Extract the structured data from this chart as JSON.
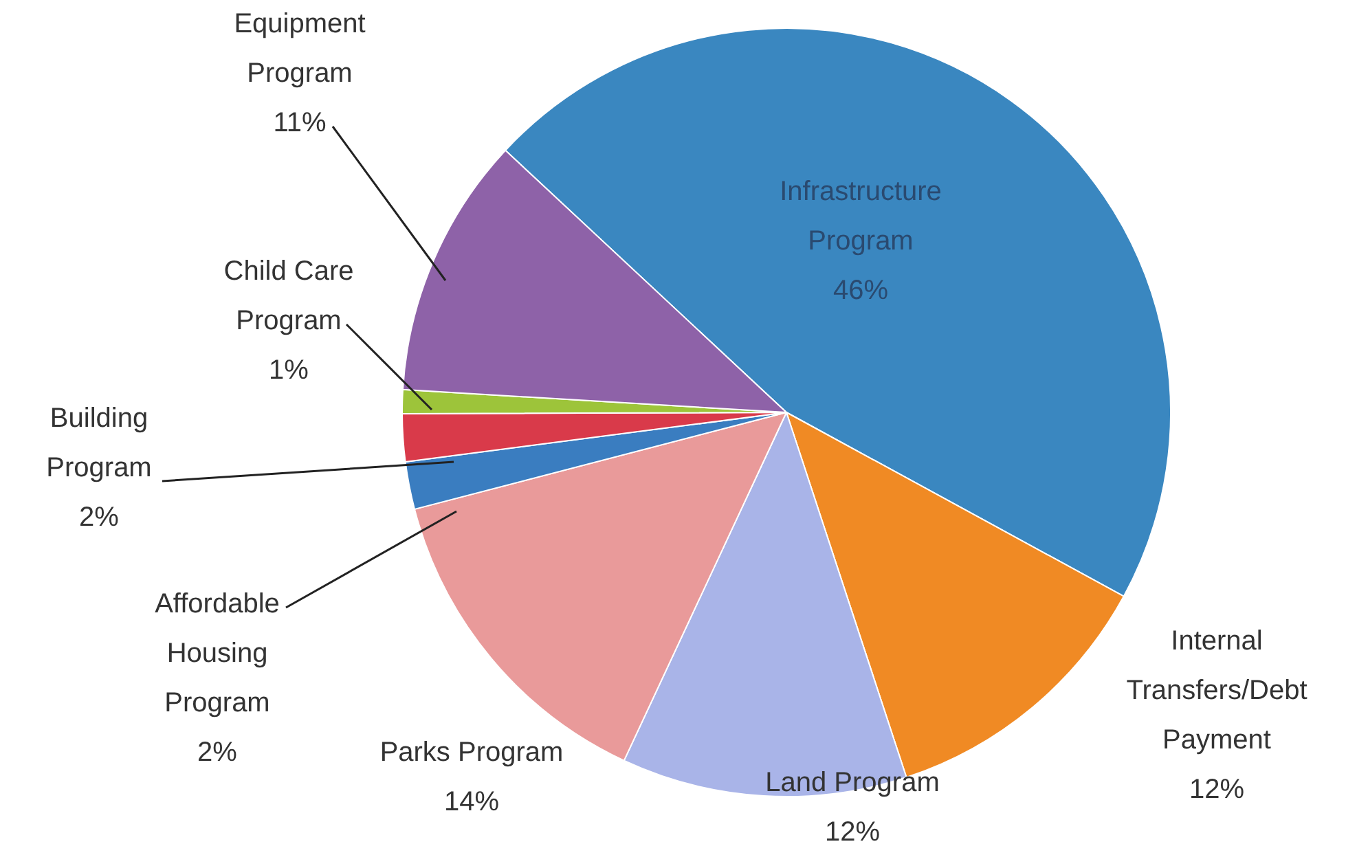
{
  "chart_data": {
    "type": "pie",
    "categories": [
      "Infrastructure Program",
      "Internal Transfers/Debt Payment",
      "Land Program",
      "Parks Program",
      "Affordable Housing Program",
      "Building Program",
      "Child Care Program",
      "Equipment Program"
    ],
    "values": [
      46,
      12,
      12,
      14,
      2,
      2,
      1,
      11
    ],
    "value_labels": [
      "46%",
      "12%",
      "12%",
      "14%",
      "2%",
      "2%",
      "1%",
      "11%"
    ],
    "colors": [
      "#3a87c0",
      "#f08a24",
      "#a9b4e8",
      "#e99a9a",
      "#3a7dc0",
      "#d93a4a",
      "#9dc43a",
      "#8e62a8"
    ],
    "legend": false
  }
}
